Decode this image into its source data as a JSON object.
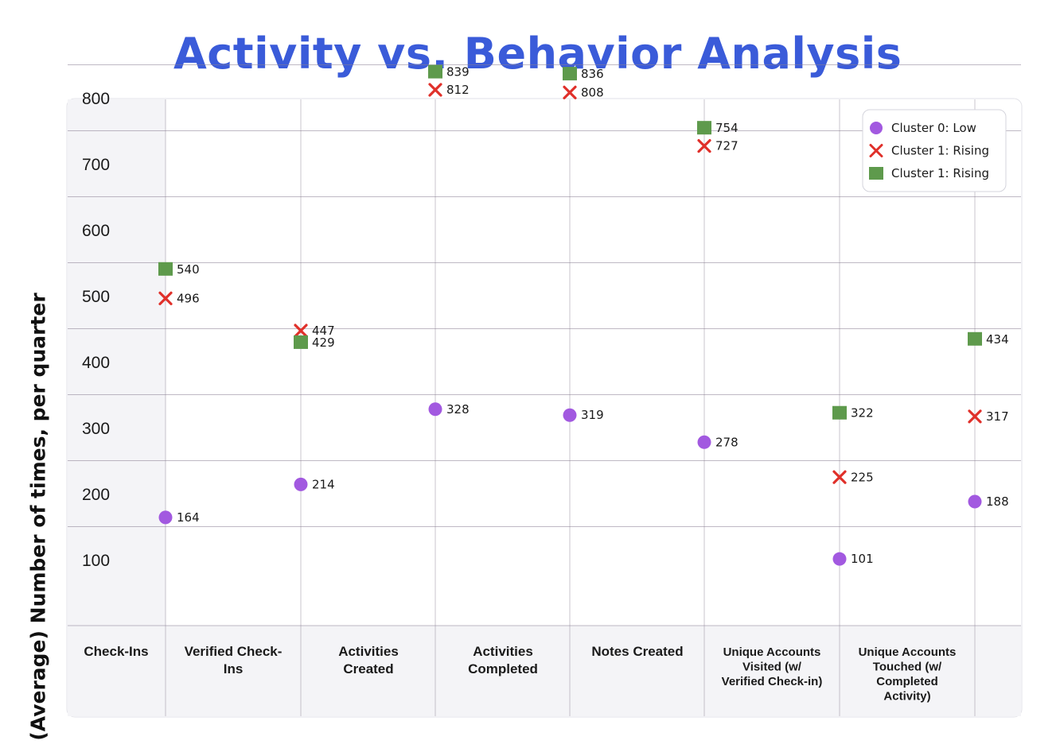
{
  "title": "Activity vs. Behavior Analysis",
  "colors": {
    "title": "#3a5bd9",
    "cluster0": "#a259e0",
    "cluster1_x": "#e0302a",
    "cluster1_sq": "#5e9a4c",
    "grid": "#8a7f93"
  },
  "chart_data": {
    "type": "scatter",
    "title": "Activity vs. Behavior Analysis",
    "xlabel": "",
    "ylabel": "(Average) Number of times, per quarter",
    "categories": [
      "Check-Ins",
      "Verified Check-Ins",
      "Activities Created",
      "Activities Completed",
      "Notes Created",
      "Unique Accounts Visited (w/ Verified Check-in)",
      "Unique Accounts Touched (w/ Completed Activity)",
      ""
    ],
    "y_ticks": [
      100,
      200,
      300,
      400,
      500,
      600,
      700,
      800
    ],
    "ylim": [
      0,
      800
    ],
    "grid": true,
    "legend_position": "top-right",
    "series": [
      {
        "name": "Cluster 0: Low",
        "marker": "circle",
        "color": "#a259e0",
        "values": [
          164,
          214,
          328,
          319,
          278,
          101,
          188
        ]
      },
      {
        "name": "Cluster 1: Rising",
        "marker": "x",
        "color": "#e0302a",
        "values": [
          496,
          447,
          812,
          808,
          727,
          225,
          317
        ]
      },
      {
        "name": "Cluster 1: Rising",
        "marker": "square",
        "color": "#5e9a4c",
        "values": [
          540,
          429,
          839,
          836,
          754,
          322,
          434
        ]
      }
    ]
  }
}
